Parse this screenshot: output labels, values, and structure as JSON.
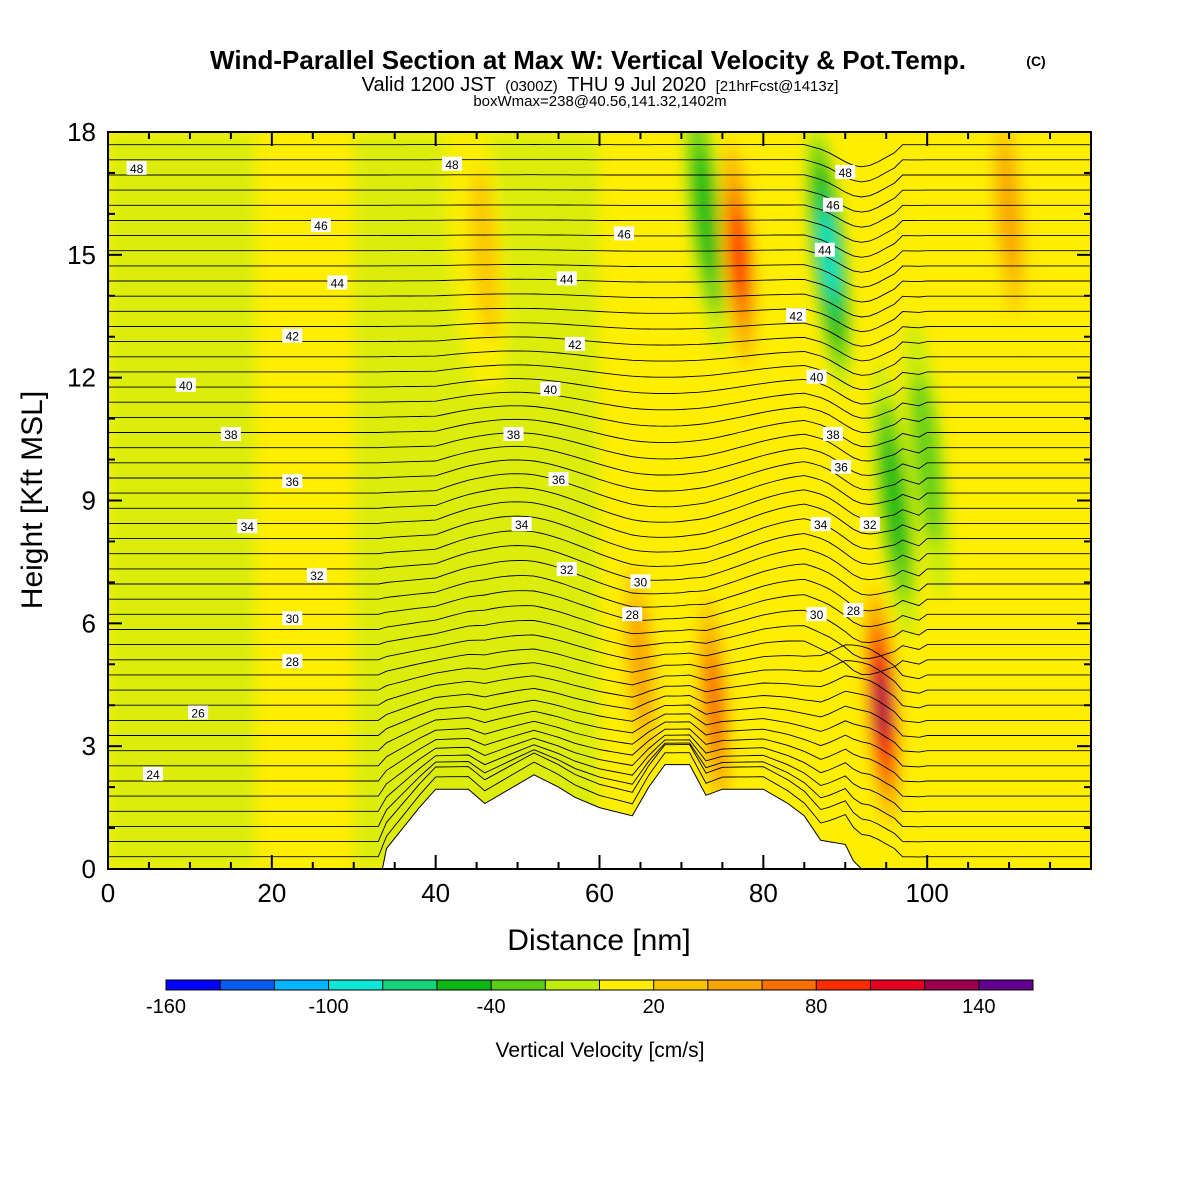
{
  "title": {
    "main": "Wind-Parallel Section at Max W: Vertical Velocity & Pot.Temp.",
    "copyright": "(C)",
    "valid_prefix": "Valid 1200 JST",
    "utc": "(0300Z)",
    "valid_date": "THU 9 Jul 2020",
    "forecast": "[21hrFcst@1413z]",
    "box_info": "boxWmax=238@40.56,141.32,1402m"
  },
  "chart_data": {
    "type": "heatmap",
    "xlabel": "Distance [nm]",
    "ylabel": "Height [Kft MSL]",
    "xlim": [
      0,
      120
    ],
    "ylim": [
      0,
      18
    ],
    "x_ticks": [
      0,
      20,
      40,
      60,
      80,
      100
    ],
    "y_ticks": [
      0,
      3,
      6,
      9,
      12,
      15,
      18
    ],
    "x_tick_labels": [
      "0",
      "20",
      "40",
      "60",
      "80",
      "100"
    ],
    "y_tick_labels": [
      "0",
      "3",
      "6",
      "9",
      "12",
      "15",
      "18"
    ],
    "colorbar": {
      "title": "Vertical Velocity [cm/s]",
      "min": -160,
      "max": 160,
      "step": 20,
      "labels": [
        -160,
        -100,
        -40,
        20,
        80,
        140
      ],
      "label_text": [
        "-160",
        "-100",
        "-40",
        "20",
        "80",
        "140"
      ],
      "colors": [
        "#0000ff",
        "#0a5cf0",
        "#00b4ff",
        "#10e6d6",
        "#16d27a",
        "#0fb714",
        "#5bcc18",
        "#c0ec0c",
        "#ffee00",
        "#fac300",
        "#fba400",
        "#f97000",
        "#ff2c00",
        "#e10020",
        "#9b004d",
        "#61008c"
      ]
    },
    "theta_contours_K": [
      24,
      26,
      28,
      30,
      32,
      34,
      36,
      38,
      40,
      42,
      44,
      46,
      48
    ],
    "velocity_features": [
      {
        "x": 44,
        "y": 15,
        "w": 10,
        "sign": "down"
      },
      {
        "x": 46,
        "y": 15,
        "w": 30,
        "sign": "up"
      },
      {
        "x": 65,
        "y": 5,
        "w": 60,
        "sign": "up"
      },
      {
        "x": 73,
        "y": 16,
        "w": -60,
        "sign": "down"
      },
      {
        "x": 74,
        "y": 4,
        "w": 80,
        "sign": "up"
      },
      {
        "x": 77,
        "y": 15,
        "w": 100,
        "sign": "up"
      },
      {
        "x": 88,
        "y": 15,
        "w": -100,
        "sign": "down"
      },
      {
        "x": 94.5,
        "y": 4,
        "w": 140,
        "sign": "up"
      },
      {
        "x": 96,
        "y": 9,
        "w": -60,
        "sign": "down"
      },
      {
        "x": 100,
        "y": 10,
        "w": -40,
        "sign": "down"
      },
      {
        "x": 110,
        "y": 16,
        "w": 60,
        "sign": "up"
      }
    ],
    "terrain_kft": [
      [
        33.5,
        0
      ],
      [
        34,
        0.5
      ],
      [
        36,
        1.0
      ],
      [
        38,
        1.5
      ],
      [
        40,
        1.95
      ],
      [
        44,
        1.95
      ],
      [
        46,
        1.6
      ],
      [
        49,
        1.95
      ],
      [
        52,
        2.3
      ],
      [
        55,
        2.0
      ],
      [
        57,
        1.75
      ],
      [
        60,
        1.5
      ],
      [
        64,
        1.3
      ],
      [
        66,
        2.0
      ],
      [
        68,
        2.55
      ],
      [
        71,
        2.55
      ],
      [
        73,
        1.8
      ],
      [
        75,
        1.95
      ],
      [
        80,
        1.95
      ],
      [
        83,
        1.6
      ],
      [
        85,
        1.3
      ],
      [
        87,
        0.7
      ],
      [
        90,
        0.6
      ],
      [
        91,
        0.2
      ],
      [
        92,
        0
      ]
    ],
    "contour_labels": [
      {
        "text": "48",
        "x": 3.5,
        "y": 17.1
      },
      {
        "text": "46",
        "x": 26,
        "y": 15.7
      },
      {
        "text": "44",
        "x": 28,
        "y": 14.3
      },
      {
        "text": "42",
        "x": 22.5,
        "y": 13.0
      },
      {
        "text": "40",
        "x": 9.5,
        "y": 11.8
      },
      {
        "text": "38",
        "x": 15,
        "y": 10.6
      },
      {
        "text": "36",
        "x": 22.5,
        "y": 9.45
      },
      {
        "text": "34",
        "x": 17,
        "y": 8.35
      },
      {
        "text": "32",
        "x": 25.5,
        "y": 7.15
      },
      {
        "text": "30",
        "x": 22.5,
        "y": 6.1
      },
      {
        "text": "28",
        "x": 22.5,
        "y": 5.05
      },
      {
        "text": "26",
        "x": 11,
        "y": 3.8
      },
      {
        "text": "24",
        "x": 5.5,
        "y": 2.3
      },
      {
        "text": "48",
        "x": 42,
        "y": 17.2
      },
      {
        "text": "46",
        "x": 63,
        "y": 15.5
      },
      {
        "text": "44",
        "x": 56,
        "y": 14.4
      },
      {
        "text": "42",
        "x": 57,
        "y": 12.8
      },
      {
        "text": "40",
        "x": 54,
        "y": 11.7
      },
      {
        "text": "38",
        "x": 49.5,
        "y": 10.6
      },
      {
        "text": "36",
        "x": 55,
        "y": 9.5
      },
      {
        "text": "34",
        "x": 50.5,
        "y": 8.4
      },
      {
        "text": "32",
        "x": 56,
        "y": 7.3
      },
      {
        "text": "30",
        "x": 65,
        "y": 7.0
      },
      {
        "text": "28",
        "x": 64,
        "y": 6.2
      },
      {
        "text": "48",
        "x": 90,
        "y": 17.0
      },
      {
        "text": "46",
        "x": 88.5,
        "y": 16.2
      },
      {
        "text": "44",
        "x": 87.5,
        "y": 15.1
      },
      {
        "text": "42",
        "x": 84,
        "y": 13.5
      },
      {
        "text": "40",
        "x": 86.5,
        "y": 12.0
      },
      {
        "text": "38",
        "x": 88.5,
        "y": 10.6
      },
      {
        "text": "36",
        "x": 89.5,
        "y": 9.8
      },
      {
        "text": "34",
        "x": 87,
        "y": 8.4
      },
      {
        "text": "32",
        "x": 93,
        "y": 8.4
      },
      {
        "text": "30",
        "x": 86.5,
        "y": 6.2
      },
      {
        "text": "28",
        "x": 91,
        "y": 6.3
      }
    ]
  }
}
